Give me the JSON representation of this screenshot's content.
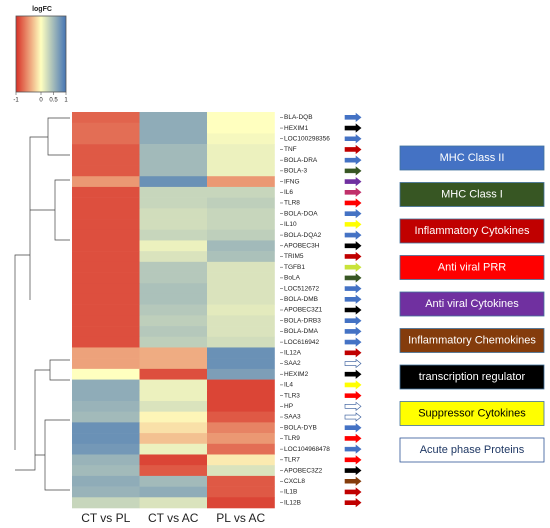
{
  "chart_data": {
    "type": "heatmap",
    "title": "logFC",
    "zlim": [
      -1,
      1
    ],
    "zticks": [
      -1,
      0,
      0.5,
      1
    ],
    "color_low": "#d73027",
    "color_mid": "#ffffbf",
    "color_high": "#4575b4",
    "columns": [
      "CT vs PL",
      "CT vs AC",
      "PL vs AC"
    ],
    "rows": [
      "BLA-DQB",
      "HEXIM1",
      "LOC100298356",
      "TNF",
      "BOLA-DRA",
      "BOLA-3",
      "IFNG",
      "IL6",
      "TLR8",
      "BOLA-DOA",
      "IL10",
      "BOLA-DQA2",
      "APOBEC3H",
      "TRIM5",
      "TGFB1",
      "BoLA",
      "LOC512672",
      "BOLA-DMB",
      "APOBEC3Z1",
      "BOLA-DRB3",
      "BOLA-DMA",
      "LOC616942",
      "IL12A",
      "SAA2",
      "HEXIM2",
      "IL4",
      "TLR3",
      "HP",
      "SAA3",
      "BOLA-DYB",
      "TLR9",
      "LOC104968478",
      "TLR7",
      "APOBEC3Z2",
      "CXCL8",
      "IL1B",
      "IL12B"
    ],
    "values": [
      [
        -0.75,
        0.6,
        0.0
      ],
      [
        -0.7,
        0.6,
        0.0
      ],
      [
        -0.7,
        0.6,
        0.05
      ],
      [
        -0.8,
        0.5,
        0.1
      ],
      [
        -0.8,
        0.5,
        0.1
      ],
      [
        -0.8,
        0.5,
        0.1
      ],
      [
        -0.5,
        0.8,
        -0.5
      ],
      [
        -0.85,
        0.3,
        0.3
      ],
      [
        -0.85,
        0.3,
        0.35
      ],
      [
        -0.85,
        0.25,
        0.3
      ],
      [
        -0.85,
        0.25,
        0.3
      ],
      [
        -0.85,
        0.3,
        0.35
      ],
      [
        -0.85,
        0.1,
        0.5
      ],
      [
        -0.85,
        0.2,
        0.45
      ],
      [
        -0.85,
        0.4,
        0.2
      ],
      [
        -0.85,
        0.4,
        0.2
      ],
      [
        -0.85,
        0.45,
        0.2
      ],
      [
        -0.85,
        0.45,
        0.2
      ],
      [
        -0.85,
        0.4,
        0.15
      ],
      [
        -0.85,
        0.35,
        0.2
      ],
      [
        -0.85,
        0.4,
        0.2
      ],
      [
        -0.85,
        0.35,
        0.25
      ],
      [
        -0.45,
        -0.4,
        0.8
      ],
      [
        -0.45,
        -0.4,
        0.8
      ],
      [
        0.0,
        -0.85,
        0.7
      ],
      [
        0.6,
        0.1,
        -0.9
      ],
      [
        0.6,
        0.1,
        -0.9
      ],
      [
        0.55,
        0.2,
        -0.9
      ],
      [
        0.5,
        -0.05,
        -0.8
      ],
      [
        0.8,
        -0.15,
        -0.6
      ],
      [
        0.8,
        -0.3,
        -0.5
      ],
      [
        0.75,
        0.1,
        -0.7
      ],
      [
        0.55,
        -0.9,
        -0.1
      ],
      [
        0.5,
        -0.8,
        0.2
      ],
      [
        0.6,
        0.5,
        -0.8
      ],
      [
        0.55,
        0.6,
        -0.8
      ],
      [
        0.3,
        0.2,
        -0.9
      ]
    ],
    "arrow_colors": [
      "#4472c4",
      "#000000",
      "#4472c4",
      "#c00000",
      "#4472c4",
      "#375623",
      "#7030a0",
      "#c0306a",
      "#ff0000",
      "#4472c4",
      "#ffff00",
      "#4472c4",
      "#000000",
      "#c00000",
      "#c9e33a",
      "#375623",
      "#4472c4",
      "#4472c4",
      "#000000",
      "#4472c4",
      "#4472c4",
      "#4472c4",
      "#c00000",
      "#ffffff",
      "#000000",
      "#ffff00",
      "#ff0000",
      "#ffffff",
      "#ffffff",
      "#4472c4",
      "#ff0000",
      "#4472c4",
      "#ff0000",
      "#000000",
      "#843c0c",
      "#c00000",
      "#c00000"
    ],
    "legend": [
      {
        "name": "MHC Class II",
        "color": "#4472c4",
        "text_color": "#ffffff"
      },
      {
        "name": "MHC Class I",
        "color": "#375623",
        "text_color": "#ffffff"
      },
      {
        "name": "Inflammatory  Cytokines",
        "color": "#c00000",
        "text_color": "#ffffff"
      },
      {
        "name": "Anti viral PRR",
        "color": "#ff0000",
        "text_color": "#ffffff"
      },
      {
        "name": "Anti viral Cytokines",
        "color": "#7030a0",
        "text_color": "#ffffff"
      },
      {
        "name": "Inflammatory Chemokines",
        "color": "#843c0c",
        "text_color": "#ffffff"
      },
      {
        "name": "transcription regulator",
        "color": "#000000",
        "text_color": "#ffffff"
      },
      {
        "name": "Suppressor Cytokines",
        "color": "#ffff00",
        "text_color": "#000000"
      },
      {
        "name": "Acute phase Proteins",
        "color": "#ffffff",
        "text_color": "#1f3864"
      }
    ]
  }
}
